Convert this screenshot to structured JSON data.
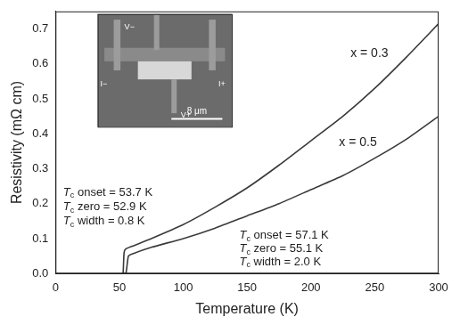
{
  "chart_data": {
    "type": "line",
    "x_label": "Temperature (K)",
    "y_label": "Resistivity (mΩ cm)",
    "xlim": [
      0,
      300
    ],
    "ylim": [
      0,
      0.75
    ],
    "xticks": [
      0,
      50,
      100,
      150,
      200,
      250,
      300
    ],
    "yticks": [
      {
        "value": 0,
        "label": "0.0"
      },
      0.1,
      0.2,
      0.3,
      0.4,
      0.5,
      0.6,
      0.7
    ],
    "grid": false,
    "series": [
      {
        "name": "x = 0.3",
        "color": "#3a3a3a",
        "line_style": "solid",
        "x": [
          52,
          52.9,
          53.7,
          55,
          60,
          75,
          100,
          125,
          150,
          175,
          200,
          225,
          250,
          275,
          300
        ],
        "values": [
          0,
          0,
          0.06,
          0.07,
          0.078,
          0.1,
          0.14,
          0.19,
          0.245,
          0.31,
          0.38,
          0.45,
          0.53,
          0.62,
          0.715
        ]
      },
      {
        "name": "x = 0.5",
        "color": "#3a3a3a",
        "line_style": "solid",
        "x": [
          53,
          55.1,
          57.1,
          60,
          75,
          100,
          125,
          150,
          175,
          200,
          225,
          250,
          275,
          300
        ],
        "values": [
          0,
          0,
          0.05,
          0.056,
          0.075,
          0.1,
          0.13,
          0.165,
          0.2,
          0.24,
          0.28,
          0.33,
          0.385,
          0.45
        ]
      }
    ],
    "annotations": [
      "Tc onset = 53.7 K",
      "Tc zero = 52.9 K",
      "Tc width = 0.8 K",
      "Tc onset = 57.1 K",
      "Tc zero = 55.1 K",
      "Tc width = 2.0 K"
    ],
    "inset": {
      "scale_bar": "8 μm",
      "labels": [
        "I−",
        "V−",
        "V+",
        "I+"
      ]
    }
  }
}
